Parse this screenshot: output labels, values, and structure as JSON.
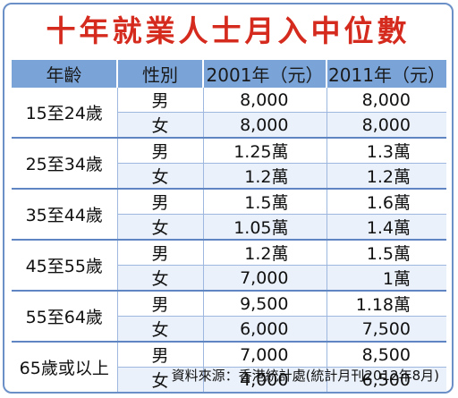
{
  "title": "十年就業人士月入中位數",
  "headers": [
    "年齡",
    "性別",
    "2001年（元）",
    "2011年（元）"
  ],
  "groups": [
    {
      "age": "15至24歲",
      "rows": [
        {
          "sex": "男",
          "v2001": "8,000",
          "v2011": "8,000"
        },
        {
          "sex": "女",
          "v2001": "8,000",
          "v2011": "8,000"
        }
      ]
    },
    {
      "age": "25至34歲",
      "rows": [
        {
          "sex": "男",
          "v2001": "1.25萬",
          "v2011": "1.3萬"
        },
        {
          "sex": "女",
          "v2001": "1.2萬",
          "v2011": "1.2萬"
        }
      ]
    },
    {
      "age": "35至44歲",
      "rows": [
        {
          "sex": "男",
          "v2001": "1.5萬",
          "v2011": "1.6萬"
        },
        {
          "sex": "女",
          "v2001": "1.05萬",
          "v2011": "1.4萬"
        }
      ]
    },
    {
      "age": "45至55歲",
      "rows": [
        {
          "sex": "男",
          "v2001": "1.2萬",
          "v2011": "1.5萬"
        },
        {
          "sex": "女",
          "v2001": "7,000",
          "v2011": "1萬"
        }
      ]
    },
    {
      "age": "55至64歲",
      "rows": [
        {
          "sex": "男",
          "v2001": "9,500",
          "v2011": "1.18萬"
        },
        {
          "sex": "女",
          "v2001": "6,000",
          "v2011": "7,500"
        }
      ]
    },
    {
      "age": "65歲或以上",
      "rows": [
        {
          "sex": "男",
          "v2001": "7,000",
          "v2011": "8,500"
        },
        {
          "sex": "女",
          "v2001": "4,000",
          "v2011": "6,500"
        }
      ]
    }
  ],
  "source": "資料來源：香港統計處(統計月刊2012年8月)",
  "colors": {
    "title": "#d52b1e",
    "header_bg": "#7aa4d8",
    "border": "#6b8fc7",
    "row_shade": "#eaf1fa"
  }
}
